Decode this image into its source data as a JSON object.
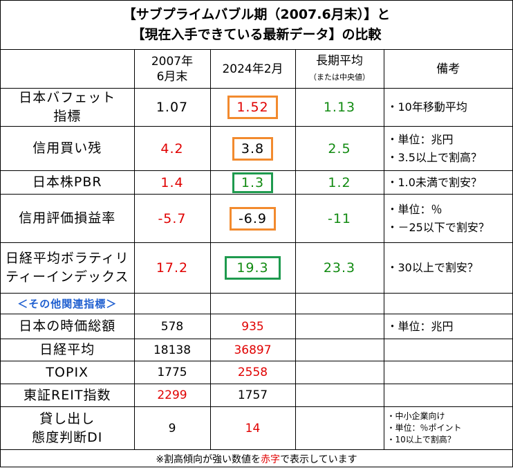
{
  "title": {
    "line1": "【サブプライムバブル期（2007.6月末）】と",
    "line2": "【現在入手できている最新データ】の比較"
  },
  "header": {
    "col_2007_line1": "2007年",
    "col_2007_line2": "6月末",
    "col_2024": "2024年2月",
    "col_long_line1": "長期平均",
    "col_long_line2": "（または中央値）",
    "col_notes": "備考"
  },
  "rows": [
    {
      "label_line1": "日本バフェット",
      "label_line2": "指標",
      "v2007": "1.07",
      "v2024": "1.52",
      "vlong": "1.13",
      "note_line1": "・10年移動平均",
      "note_line2": ""
    },
    {
      "label_line1": "信用買い残",
      "label_line2": "",
      "v2007": "4.2",
      "v2024": "3.8",
      "vlong": "2.5",
      "note_line1": "・単位：兆円",
      "note_line2": "・3.5以上で割高？"
    },
    {
      "label_line1": "日本株PBR",
      "label_line2": "",
      "v2007": "1.4",
      "v2024": "1.3",
      "vlong": "1.2",
      "note_line1": "・1.0未満で割安？",
      "note_line2": ""
    },
    {
      "label_line1": "信用評価損益率",
      "label_line2": "",
      "v2007": "-5.7",
      "v2024": "-6.9",
      "vlong": "-11",
      "note_line1": "・単位：％",
      "note_line2": "・－25以下で割安？"
    },
    {
      "label_line1": "日経平均ボラティリ",
      "label_line2": "ティーインデックス",
      "v2007": "17.2",
      "v2024": "19.3",
      "vlong": "23.3",
      "note_line1": "・30以上で割安？",
      "note_line2": ""
    }
  ],
  "other_header": "＜その他関連指標＞",
  "other_rows": [
    {
      "label_line1": "日本の時価総額",
      "label_line2": "",
      "v2007": "578",
      "v2024": "935",
      "note_line1": "・単位：兆円",
      "note_line2": "",
      "note_line3": ""
    },
    {
      "label_line1": "日経平均",
      "label_line2": "",
      "v2007": "18138",
      "v2024": "36897",
      "note_line1": "",
      "note_line2": "",
      "note_line3": ""
    },
    {
      "label_line1": "TOPIX",
      "label_line2": "",
      "v2007": "1775",
      "v2024": "2558",
      "note_line1": "",
      "note_line2": "",
      "note_line3": ""
    },
    {
      "label_line1": "東証REIT指数",
      "label_line2": "",
      "v2007": "2299",
      "v2024": "1757",
      "note_line1": "",
      "note_line2": "",
      "note_line3": ""
    },
    {
      "label_line1": "貸し出し",
      "label_line2": "態度判断DI",
      "v2007": "9",
      "v2024": "14",
      "note_line1": "・中小企業向け",
      "note_line2": "・単位：％ポイント",
      "note_line3": "・10以上で割高？"
    }
  ],
  "footer": {
    "prefix": "※割高傾向が強い数値を",
    "highlight": "赤字",
    "suffix": "で表示しています"
  },
  "colors": {
    "red_text": "#e00000",
    "green_text": "#108a10",
    "blue_text": "#1f5fd0",
    "orange_box": "#f28a2e",
    "green_box": "#1e9a4e"
  }
}
